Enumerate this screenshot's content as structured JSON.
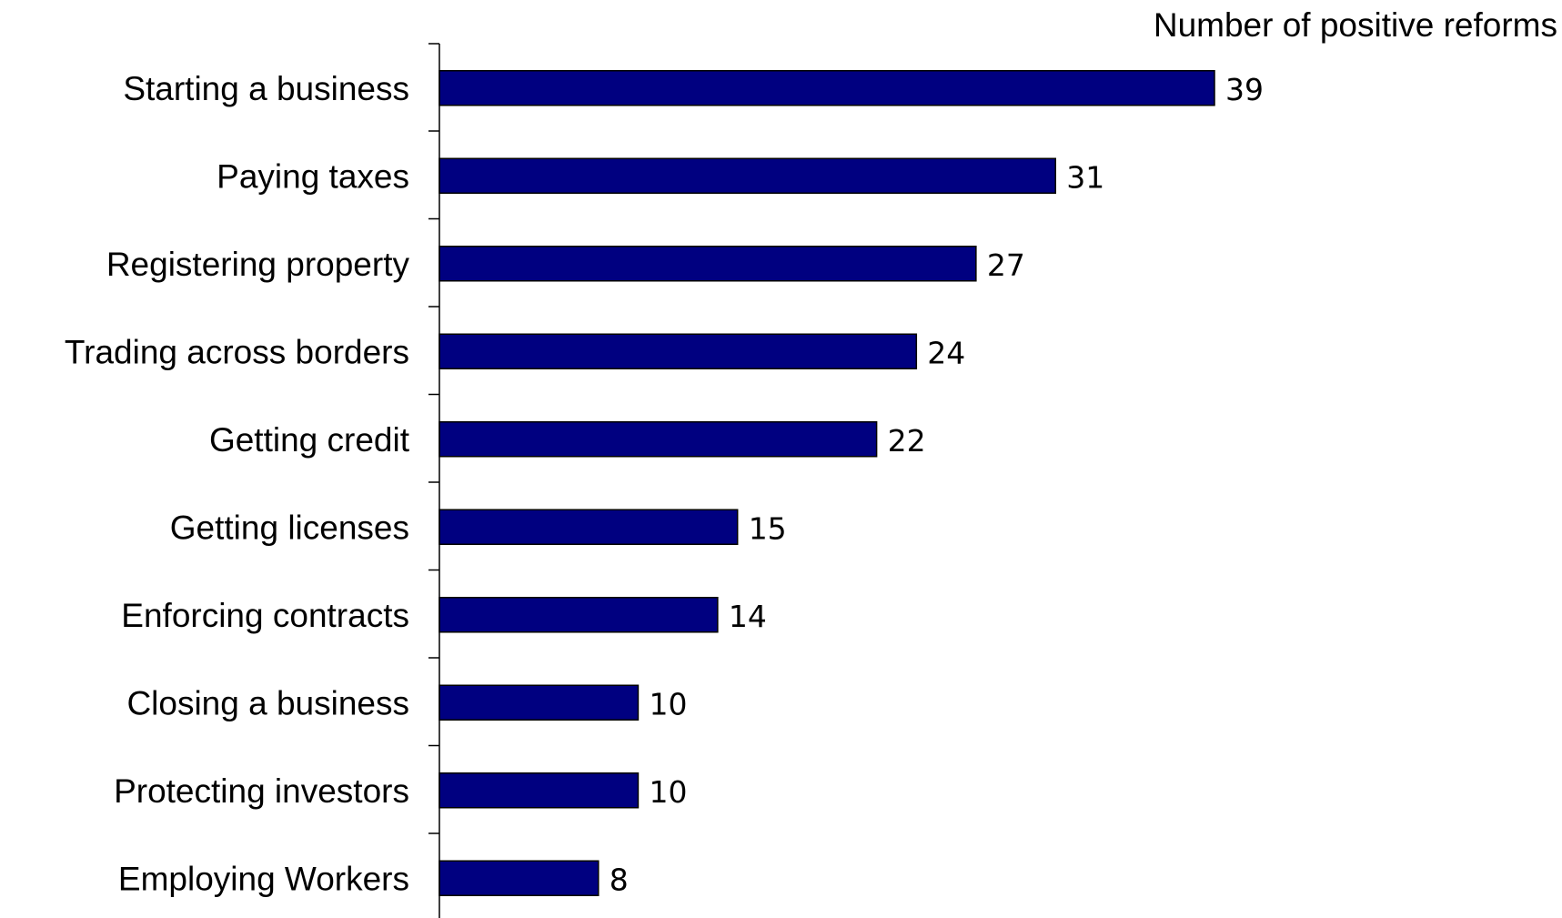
{
  "chart_data": {
    "type": "bar",
    "orientation": "horizontal",
    "xlabel": "Number of positive reforms",
    "ylabel": "",
    "xlim": [
      0,
      39
    ],
    "grid": false,
    "legend": "none",
    "bar_color": "#000080",
    "categories": [
      "Starting a business",
      "Paying taxes",
      "Registering property",
      "Trading across borders",
      "Getting credit",
      "Getting licenses",
      "Enforcing contracts",
      "Closing a business",
      "Protecting investors",
      "Employing Workers"
    ],
    "values": [
      39,
      31,
      27,
      24,
      22,
      15,
      14,
      10,
      10,
      8
    ]
  }
}
